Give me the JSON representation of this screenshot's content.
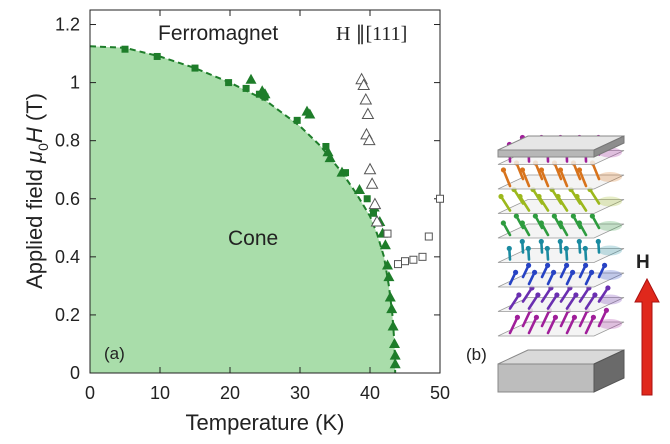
{
  "chart_data": {
    "type": "scatter",
    "panel_label": "(a)",
    "xlabel": "Temperature (K)",
    "ylabel_prefix": "Applied field ",
    "ylabel_mu": "μ",
    "ylabel_sub": "0",
    "ylabel_H": "H",
    "ylabel_unit": " (T)",
    "xlim": [
      0,
      50
    ],
    "ylim": [
      0,
      1.25
    ],
    "xticks": [
      "0",
      "10",
      "20",
      "30",
      "40",
      "50"
    ],
    "yticks": [
      "0",
      "0.2",
      "0.4",
      "0.6",
      "0.8",
      "1",
      "1.2"
    ],
    "grid": false,
    "region_labels": {
      "upper": "Ferromagnet",
      "lower": "Cone"
    },
    "field_direction": "H ∥[111]",
    "colors": {
      "filled": "#1e7d2a",
      "region_fill": "#a9ddaa",
      "boundary": "#1e7d2a",
      "open": "#555555"
    },
    "phase_boundary": {
      "x": [
        0,
        5,
        10,
        15,
        20,
        25,
        30,
        33,
        36,
        38,
        40,
        41,
        42,
        42.7,
        43.2,
        43.5,
        43.6
      ],
      "y": [
        1.125,
        1.12,
        1.09,
        1.05,
        1.0,
        0.94,
        0.85,
        0.78,
        0.69,
        0.62,
        0.54,
        0.48,
        0.4,
        0.3,
        0.2,
        0.1,
        0.0
      ]
    },
    "series": [
      {
        "marker": "filled-square",
        "x": [
          5,
          9.6,
          15,
          19.8,
          22.3,
          24.2,
          25,
          29.6,
          33.7,
          36.5,
          39.6,
          40.5
        ],
        "y": [
          1.115,
          1.09,
          1.05,
          1.0,
          0.98,
          0.96,
          0.95,
          0.87,
          0.78,
          0.69,
          0.6,
          0.55
        ]
      },
      {
        "marker": "filled-triangle",
        "x": [
          23,
          24.6,
          25,
          31,
          31.4,
          34,
          34.3,
          36,
          38.5,
          40.6,
          41.4,
          41.8,
          42.2,
          42.5,
          42.7,
          42.9,
          43.1,
          43.3,
          43.5,
          43.6,
          43.6
        ],
        "y": [
          1.01,
          0.97,
          0.96,
          0.9,
          0.89,
          0.76,
          0.74,
          0.69,
          0.63,
          0.57,
          0.52,
          0.48,
          0.44,
          0.37,
          0.33,
          0.26,
          0.22,
          0.16,
          0.1,
          0.06,
          0.03
        ]
      },
      {
        "marker": "open-triangle",
        "x": [
          38.8,
          39.1,
          39.4,
          39.7,
          39.5,
          39.9,
          40.0,
          40.3,
          40.7,
          41.0
        ],
        "y": [
          1.01,
          0.99,
          0.94,
          0.89,
          0.82,
          0.8,
          0.7,
          0.65,
          0.58,
          0.52
        ]
      },
      {
        "marker": "open-square",
        "x": [
          42.5,
          44,
          45,
          46.2,
          47.5,
          48.4,
          50
        ],
        "y": [
          0.48,
          0.375,
          0.385,
          0.39,
          0.4,
          0.47,
          0.6
        ]
      }
    ]
  },
  "schematic": {
    "panel_label": "(b)",
    "field_label": "H",
    "colors": {
      "arrow": "#e0281c",
      "layers": [
        "#a01f9a",
        "#6a2fb0",
        "#2743c4",
        "#1a8aa0",
        "#2e9c3f",
        "#9cb81d",
        "#d8731c",
        "#a01f9a"
      ]
    }
  }
}
